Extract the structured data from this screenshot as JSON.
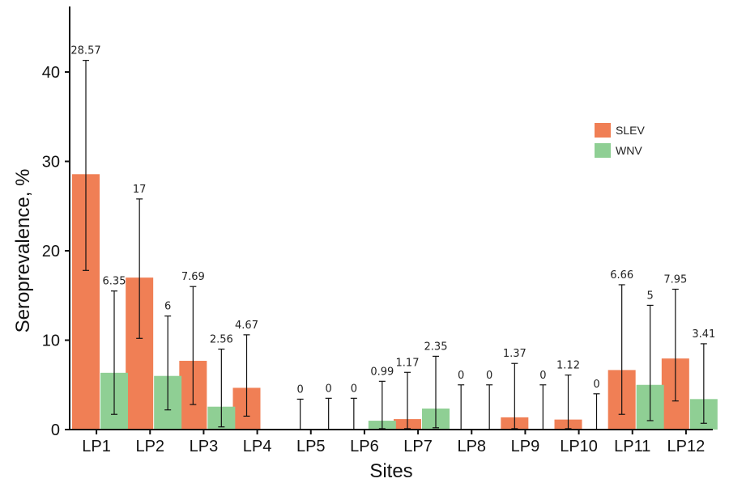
{
  "chart_data": {
    "type": "bar",
    "title": "",
    "xlabel": "Sites",
    "ylabel": "Seroprevalence, %",
    "ylim": [
      0,
      47
    ],
    "yticks": [
      0,
      10,
      20,
      30,
      40
    ],
    "grid": false,
    "legend_position": "top-right",
    "categories": [
      "LP1",
      "LP2",
      "LP3",
      "LP4",
      "LP5",
      "LP6",
      "LP7",
      "LP8",
      "LP9",
      "LP10",
      "LP11",
      "LP12"
    ],
    "series": [
      {
        "name": "SLEV",
        "color": "#f07f55",
        "values": [
          28.57,
          17,
          7.69,
          4.67,
          0,
          0,
          1.17,
          0,
          1.37,
          1.12,
          6.66,
          7.95
        ],
        "labels": [
          "28.57",
          "17",
          "7.69",
          "4.67",
          "0",
          "0",
          "1.17",
          "0",
          "1.37",
          "1.12",
          "6.66",
          "7.95"
        ],
        "error_low": [
          17.8,
          10.2,
          2.8,
          1.5,
          0,
          0,
          0.1,
          0,
          0.1,
          0.1,
          1.7,
          3.2
        ],
        "error_high": [
          41.3,
          25.8,
          16.0,
          10.6,
          3.4,
          3.5,
          6.4,
          5.0,
          7.4,
          6.1,
          16.2,
          15.7
        ]
      },
      {
        "name": "WNV",
        "color": "#8fcf94",
        "values": [
          6.35,
          6,
          2.56,
          0,
          0,
          0.99,
          2.35,
          0,
          0,
          0,
          5,
          3.41
        ],
        "labels": [
          "6.35",
          "6",
          "2.56",
          "",
          "0",
          "0.99",
          "2.35",
          "0",
          "0",
          "0",
          "5",
          "3.41"
        ],
        "error_low": [
          1.7,
          2.2,
          0.3,
          0,
          0,
          0.1,
          0.2,
          0,
          0,
          0,
          1.0,
          0.7
        ],
        "error_high": [
          15.5,
          12.7,
          9.0,
          0,
          3.5,
          5.4,
          8.2,
          5.0,
          5.0,
          4.0,
          13.9,
          9.6
        ]
      }
    ]
  }
}
